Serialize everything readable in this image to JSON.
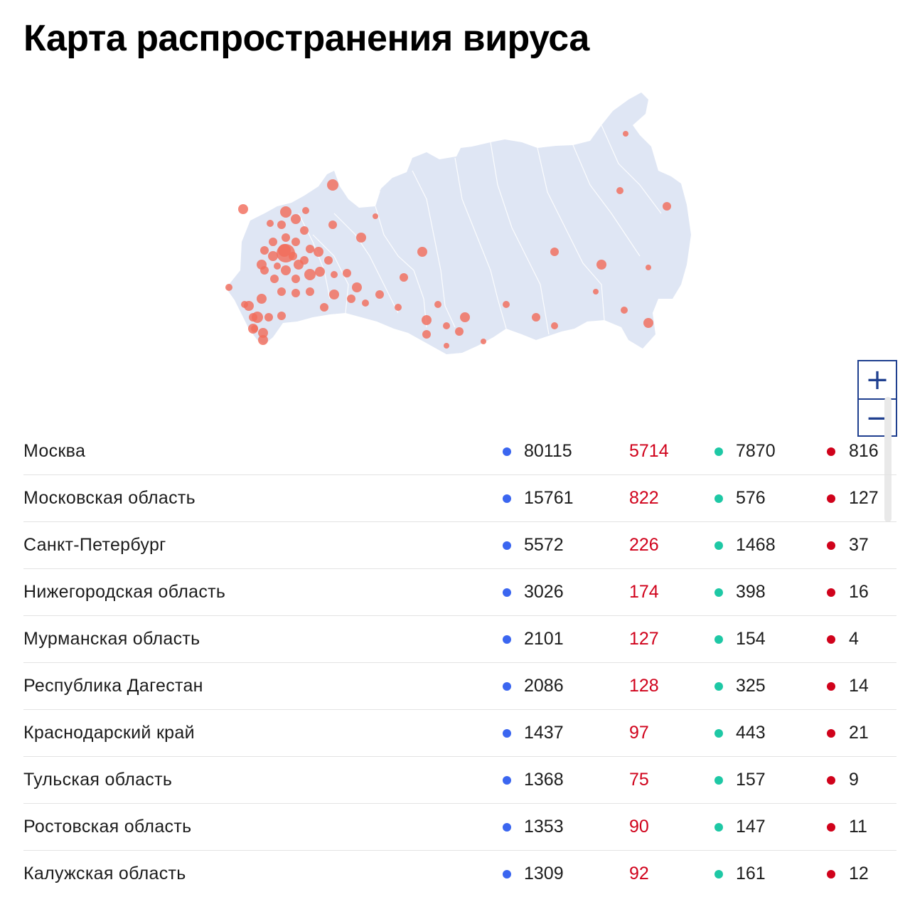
{
  "title": "Карта распространения вируса",
  "colors": {
    "cases": "#3b66f0",
    "new_cases": "#d0021b",
    "recovered": "#1ec8a5",
    "deaths": "#d0021b",
    "map_fill": "#dfe6f4",
    "marker": "#f26d5b"
  },
  "zoom": {
    "in_icon": "plus-icon",
    "out_icon": "minus-icon",
    "in_label": "+",
    "out_label": "−"
  },
  "regions": [
    {
      "name": "Москва",
      "cases": "80115",
      "new": "5714",
      "recovered": "7870",
      "deaths": "816"
    },
    {
      "name": "Московская область",
      "cases": "15761",
      "new": "822",
      "recovered": "576",
      "deaths": "127"
    },
    {
      "name": "Санкт-Петербург",
      "cases": "5572",
      "new": "226",
      "recovered": "1468",
      "deaths": "37"
    },
    {
      "name": "Нижегородская область",
      "cases": "3026",
      "new": "174",
      "recovered": "398",
      "deaths": "16"
    },
    {
      "name": "Мурманская область",
      "cases": "2101",
      "new": "127",
      "recovered": "154",
      "deaths": "4"
    },
    {
      "name": "Республика Дагестан",
      "cases": "2086",
      "new": "128",
      "recovered": "325",
      "deaths": "14"
    },
    {
      "name": "Краснодарский край",
      "cases": "1437",
      "new": "97",
      "recovered": "443",
      "deaths": "21"
    },
    {
      "name": "Тульская область",
      "cases": "1368",
      "new": "75",
      "recovered": "157",
      "deaths": "9"
    },
    {
      "name": "Ростовская область",
      "cases": "1353",
      "new": "90",
      "recovered": "147",
      "deaths": "11"
    },
    {
      "name": "Калужская область",
      "cases": "1309",
      "new": "92",
      "recovered": "161",
      "deaths": "12"
    }
  ]
}
